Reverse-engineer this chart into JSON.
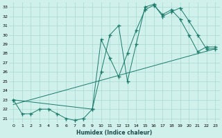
{
  "xlabel": "Humidex (Indice chaleur)",
  "bg_color": "#cff0eb",
  "grid_color": "#a8d8d0",
  "line_color": "#1a7a6a",
  "xlim": [
    -0.5,
    23.5
  ],
  "ylim": [
    20.5,
    33.5
  ],
  "xticks": [
    0,
    1,
    2,
    3,
    4,
    5,
    6,
    7,
    8,
    9,
    10,
    11,
    12,
    13,
    14,
    15,
    16,
    17,
    18,
    19,
    20,
    21,
    22,
    23
  ],
  "yticks": [
    21,
    22,
    23,
    24,
    25,
    26,
    27,
    28,
    29,
    30,
    31,
    32,
    33
  ],
  "line1_x": [
    0,
    1,
    2,
    3,
    4,
    5,
    6,
    7,
    8,
    9,
    10,
    11,
    12,
    13,
    14,
    15,
    16,
    17,
    18,
    19,
    20,
    21,
    22,
    23
  ],
  "line1_y": [
    23,
    21.5,
    21.5,
    22,
    22,
    21.5,
    21,
    20.8,
    21,
    22,
    29.5,
    27.5,
    25.5,
    28,
    30.5,
    32.7,
    33.2,
    32.2,
    32.7,
    31.7,
    30,
    28.2,
    28.7,
    28.7
  ],
  "line2_x": [
    0,
    9,
    10,
    11,
    12,
    13,
    14,
    15,
    16,
    17,
    18,
    19,
    20,
    21,
    22,
    23
  ],
  "line2_y": [
    23,
    22,
    26,
    30,
    31,
    25,
    29,
    33,
    33.3,
    32,
    32.5,
    32.9,
    31.5,
    30,
    28.5,
    28.5
  ],
  "line3_x": [
    0,
    23
  ],
  "line3_y": [
    22.5,
    28.5
  ],
  "marker_size": 2.0,
  "linewidth": 0.7
}
